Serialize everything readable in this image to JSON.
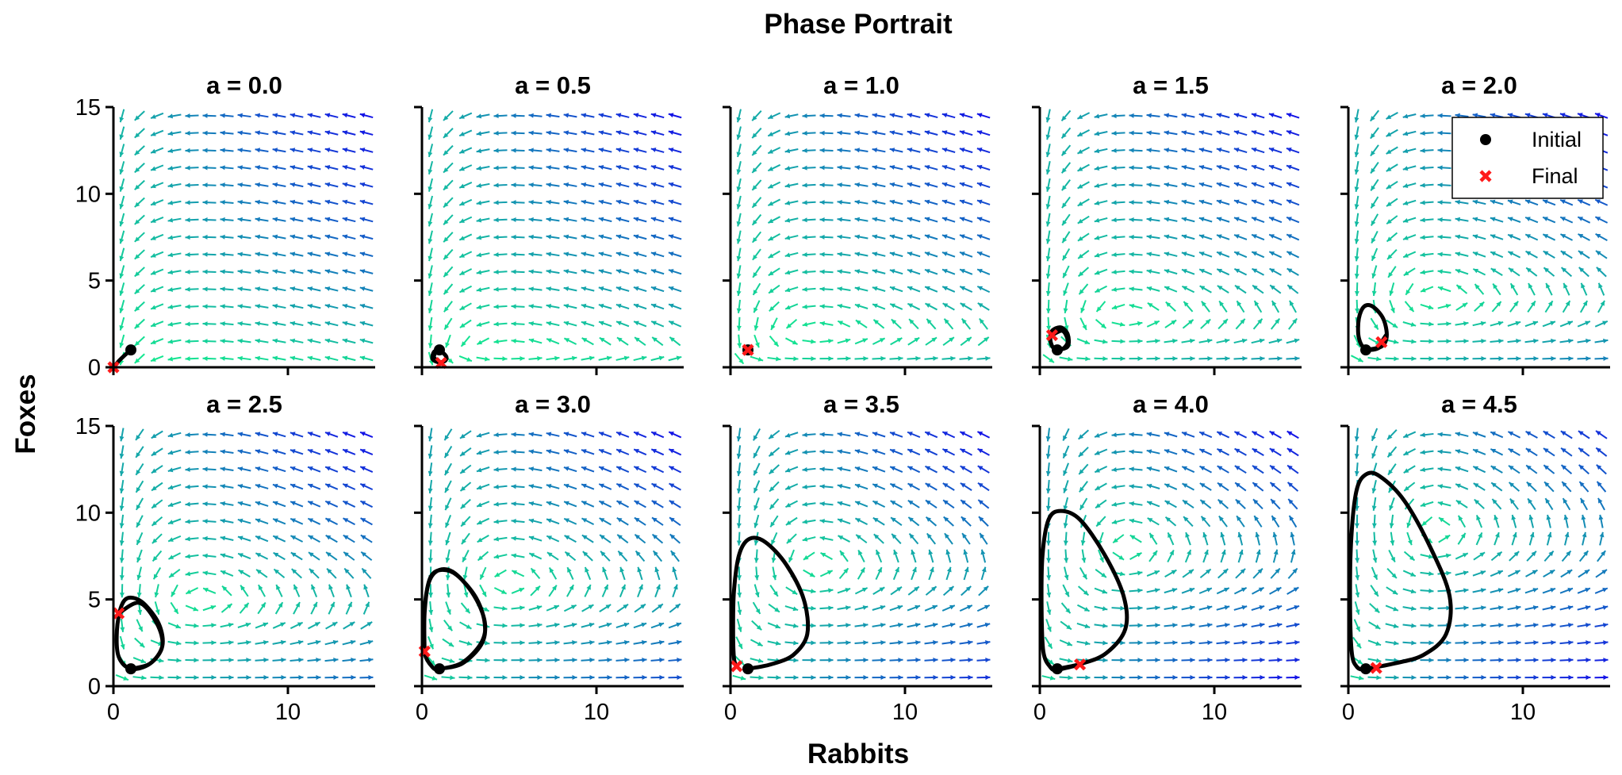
{
  "figure": {
    "title": "Phase Portrait",
    "xlabel": "Rabbits",
    "ylabel": "Foxes"
  },
  "legend": {
    "placement": "top-right of last top panel",
    "entries": [
      {
        "label": "Initial",
        "marker": "circle",
        "color": "#000000"
      },
      {
        "label": "Final",
        "marker": "x",
        "color": "#ff1a1a"
      }
    ]
  },
  "colors": {
    "vector_low": "#14f08c",
    "vector_high": "#1414e6",
    "trajectory": "#000000",
    "final_marker": "#ff1a1a"
  },
  "chart_data": [
    {
      "type": "quiver",
      "title": "a = 0.0",
      "param_a": 0.0,
      "xlim": [
        0,
        15
      ],
      "ylim": [
        0,
        15
      ],
      "xticks": [
        "0",
        "10"
      ],
      "yticks": [
        "0",
        "5",
        "10",
        "15"
      ],
      "trajectory": [
        [
          1.0,
          1.0
        ],
        [
          0.6,
          0.65
        ],
        [
          0.3,
          0.35
        ],
        [
          0.1,
          0.1
        ],
        [
          0.0,
          0.0
        ]
      ],
      "initial": [
        1.0,
        1.0
      ],
      "final": [
        0.0,
        0.0
      ]
    },
    {
      "type": "quiver",
      "title": "a = 0.5",
      "param_a": 0.5,
      "xlim": [
        0,
        15
      ],
      "ylim": [
        0,
        15
      ],
      "xticks": [
        "0",
        "10"
      ],
      "yticks": [
        "0",
        "5",
        "10",
        "15"
      ],
      "trajectory": [
        [
          1.0,
          1.0
        ],
        [
          0.7,
          0.9
        ],
        [
          0.6,
          0.5
        ],
        [
          0.9,
          0.3
        ],
        [
          1.3,
          0.35
        ],
        [
          1.4,
          0.6
        ],
        [
          1.1,
          0.9
        ],
        [
          0.8,
          0.85
        ],
        [
          0.7,
          0.55
        ],
        [
          1.1,
          0.25
        ]
      ],
      "initial": [
        1.0,
        1.0
      ],
      "final": [
        1.1,
        0.25
      ]
    },
    {
      "type": "quiver",
      "title": "a = 1.0",
      "param_a": 1.0,
      "xlim": [
        0,
        15
      ],
      "ylim": [
        0,
        15
      ],
      "xticks": [
        "0",
        "10"
      ],
      "yticks": [
        "0",
        "5",
        "10",
        "15"
      ],
      "trajectory": [
        [
          1.0,
          1.0
        ],
        [
          1.0,
          1.0
        ]
      ],
      "initial": [
        1.0,
        1.0
      ],
      "final": [
        1.0,
        1.0
      ]
    },
    {
      "type": "quiver",
      "title": "a = 1.5",
      "param_a": 1.5,
      "xlim": [
        0,
        15
      ],
      "ylim": [
        0,
        15
      ],
      "xticks": [
        "0",
        "10"
      ],
      "yticks": [
        "0",
        "5",
        "10",
        "15"
      ],
      "trajectory": [
        [
          1.0,
          1.0
        ],
        [
          1.6,
          1.2
        ],
        [
          1.6,
          1.9
        ],
        [
          1.2,
          2.3
        ],
        [
          0.7,
          2.1
        ],
        [
          0.6,
          1.6
        ],
        [
          0.8,
          1.1
        ],
        [
          1.3,
          1.05
        ],
        [
          1.6,
          1.5
        ],
        [
          1.3,
          2.1
        ],
        [
          0.7,
          1.85
        ]
      ],
      "initial": [
        1.0,
        1.0
      ],
      "final": [
        0.7,
        1.85
      ]
    },
    {
      "type": "quiver",
      "title": "a = 2.0",
      "param_a": 2.0,
      "xlim": [
        0,
        15
      ],
      "ylim": [
        0,
        15
      ],
      "xticks": [
        "0",
        "10"
      ],
      "yticks": [
        "0",
        "5",
        "10",
        "15"
      ],
      "trajectory": [
        [
          1.0,
          1.0
        ],
        [
          1.9,
          1.2
        ],
        [
          2.2,
          1.8
        ],
        [
          2.0,
          2.8
        ],
        [
          1.4,
          3.5
        ],
        [
          0.9,
          3.5
        ],
        [
          0.6,
          2.8
        ],
        [
          0.6,
          1.7
        ],
        [
          1.0,
          1.05
        ],
        [
          1.8,
          1.15
        ],
        [
          2.2,
          1.9
        ],
        [
          1.9,
          1.45
        ]
      ],
      "initial": [
        1.0,
        1.0
      ],
      "final": [
        1.9,
        1.45
      ]
    },
    {
      "type": "quiver",
      "title": "a = 2.5",
      "param_a": 2.5,
      "xlim": [
        0,
        15
      ],
      "ylim": [
        0,
        15
      ],
      "xticks": [
        "0",
        "10"
      ],
      "yticks": [
        "0",
        "5",
        "10",
        "15"
      ],
      "trajectory": [
        [
          1.0,
          1.0
        ],
        [
          2.1,
          1.3
        ],
        [
          2.8,
          2.3
        ],
        [
          2.6,
          3.6
        ],
        [
          1.7,
          4.8
        ],
        [
          0.9,
          5.1
        ],
        [
          0.45,
          4.6
        ],
        [
          0.2,
          3.2
        ],
        [
          0.3,
          1.7
        ],
        [
          1.0,
          1.0
        ],
        [
          2.1,
          1.3
        ],
        [
          2.8,
          2.3
        ],
        [
          2.5,
          3.6
        ],
        [
          1.5,
          4.8
        ],
        [
          0.3,
          4.2
        ]
      ],
      "initial": [
        1.0,
        1.0
      ],
      "final": [
        0.3,
        4.2
      ]
    },
    {
      "type": "quiver",
      "title": "a = 3.0",
      "param_a": 3.0,
      "xlim": [
        0,
        15
      ],
      "ylim": [
        0,
        15
      ],
      "xticks": [
        "0",
        "10"
      ],
      "yticks": [
        "0",
        "5",
        "10",
        "15"
      ],
      "trajectory": [
        [
          1.0,
          1.0
        ],
        [
          2.3,
          1.3
        ],
        [
          3.4,
          2.4
        ],
        [
          3.6,
          3.6
        ],
        [
          3.1,
          5.1
        ],
        [
          2.0,
          6.4
        ],
        [
          1.1,
          6.7
        ],
        [
          0.5,
          6.3
        ],
        [
          0.2,
          5.0
        ],
        [
          0.1,
          3.3
        ],
        [
          0.15,
          1.9
        ],
        [
          0.6,
          1.1
        ],
        [
          1.0,
          1.0
        ],
        [
          2.3,
          1.35
        ],
        [
          3.4,
          2.5
        ],
        [
          3.6,
          3.7
        ],
        [
          3.0,
          5.2
        ],
        [
          1.9,
          6.5
        ],
        [
          1.0,
          6.7
        ],
        [
          0.4,
          6.0
        ],
        [
          0.15,
          4.2
        ],
        [
          0.15,
          2.0
        ]
      ],
      "initial": [
        1.0,
        1.0
      ],
      "final": [
        0.15,
        2.0
      ]
    },
    {
      "type": "quiver",
      "title": "a = 3.5",
      "param_a": 3.5,
      "xlim": [
        0,
        15
      ],
      "ylim": [
        0,
        15
      ],
      "xticks": [
        "0",
        "10"
      ],
      "yticks": [
        "0",
        "5",
        "10",
        "15"
      ],
      "trajectory": [
        [
          1.0,
          1.0
        ],
        [
          2.3,
          1.25
        ],
        [
          3.6,
          1.8
        ],
        [
          4.4,
          3.0
        ],
        [
          4.2,
          5.0
        ],
        [
          3.2,
          7.0
        ],
        [
          2.0,
          8.3
        ],
        [
          1.1,
          8.5
        ],
        [
          0.5,
          7.6
        ],
        [
          0.2,
          5.5
        ],
        [
          0.15,
          3.2
        ],
        [
          0.2,
          1.6
        ],
        [
          0.35,
          1.15
        ]
      ],
      "initial": [
        1.0,
        1.0
      ],
      "final": [
        0.35,
        1.15
      ]
    },
    {
      "type": "quiver",
      "title": "a = 4.0",
      "param_a": 4.0,
      "xlim": [
        0,
        15
      ],
      "ylim": [
        0,
        15
      ],
      "xticks": [
        "0",
        "10"
      ],
      "yticks": [
        "0",
        "5",
        "10",
        "15"
      ],
      "trajectory": [
        [
          1.0,
          1.0
        ],
        [
          2.4,
          1.3
        ],
        [
          3.8,
          1.9
        ],
        [
          4.9,
          3.3
        ],
        [
          4.8,
          5.2
        ],
        [
          3.7,
          7.6
        ],
        [
          2.3,
          9.6
        ],
        [
          1.2,
          10.1
        ],
        [
          0.5,
          9.6
        ],
        [
          0.15,
          7.5
        ],
        [
          0.1,
          4.5
        ],
        [
          0.2,
          2.0
        ],
        [
          0.6,
          1.1
        ],
        [
          1.0,
          0.95
        ],
        [
          2.3,
          1.25
        ]
      ],
      "initial": [
        1.0,
        1.0
      ],
      "final": [
        2.3,
        1.25
      ]
    },
    {
      "type": "quiver",
      "title": "a = 4.5",
      "param_a": 4.5,
      "xlim": [
        0,
        15
      ],
      "ylim": [
        0,
        15
      ],
      "xticks": [
        "0",
        "10"
      ],
      "yticks": [
        "0",
        "5",
        "10",
        "15"
      ],
      "trajectory": [
        [
          1.0,
          1.0
        ],
        [
          2.6,
          1.3
        ],
        [
          4.3,
          1.8
        ],
        [
          5.6,
          3.0
        ],
        [
          5.8,
          5.2
        ],
        [
          4.7,
          8.0
        ],
        [
          3.2,
          10.7
        ],
        [
          1.8,
          12.1
        ],
        [
          1.0,
          12.2
        ],
        [
          0.45,
          11.2
        ],
        [
          0.15,
          8.2
        ],
        [
          0.1,
          4.5
        ],
        [
          0.2,
          1.9
        ],
        [
          0.5,
          1.1
        ],
        [
          1.0,
          0.95
        ],
        [
          1.6,
          1.05
        ]
      ],
      "initial": [
        1.0,
        1.0
      ],
      "final": [
        1.6,
        1.05
      ]
    }
  ]
}
